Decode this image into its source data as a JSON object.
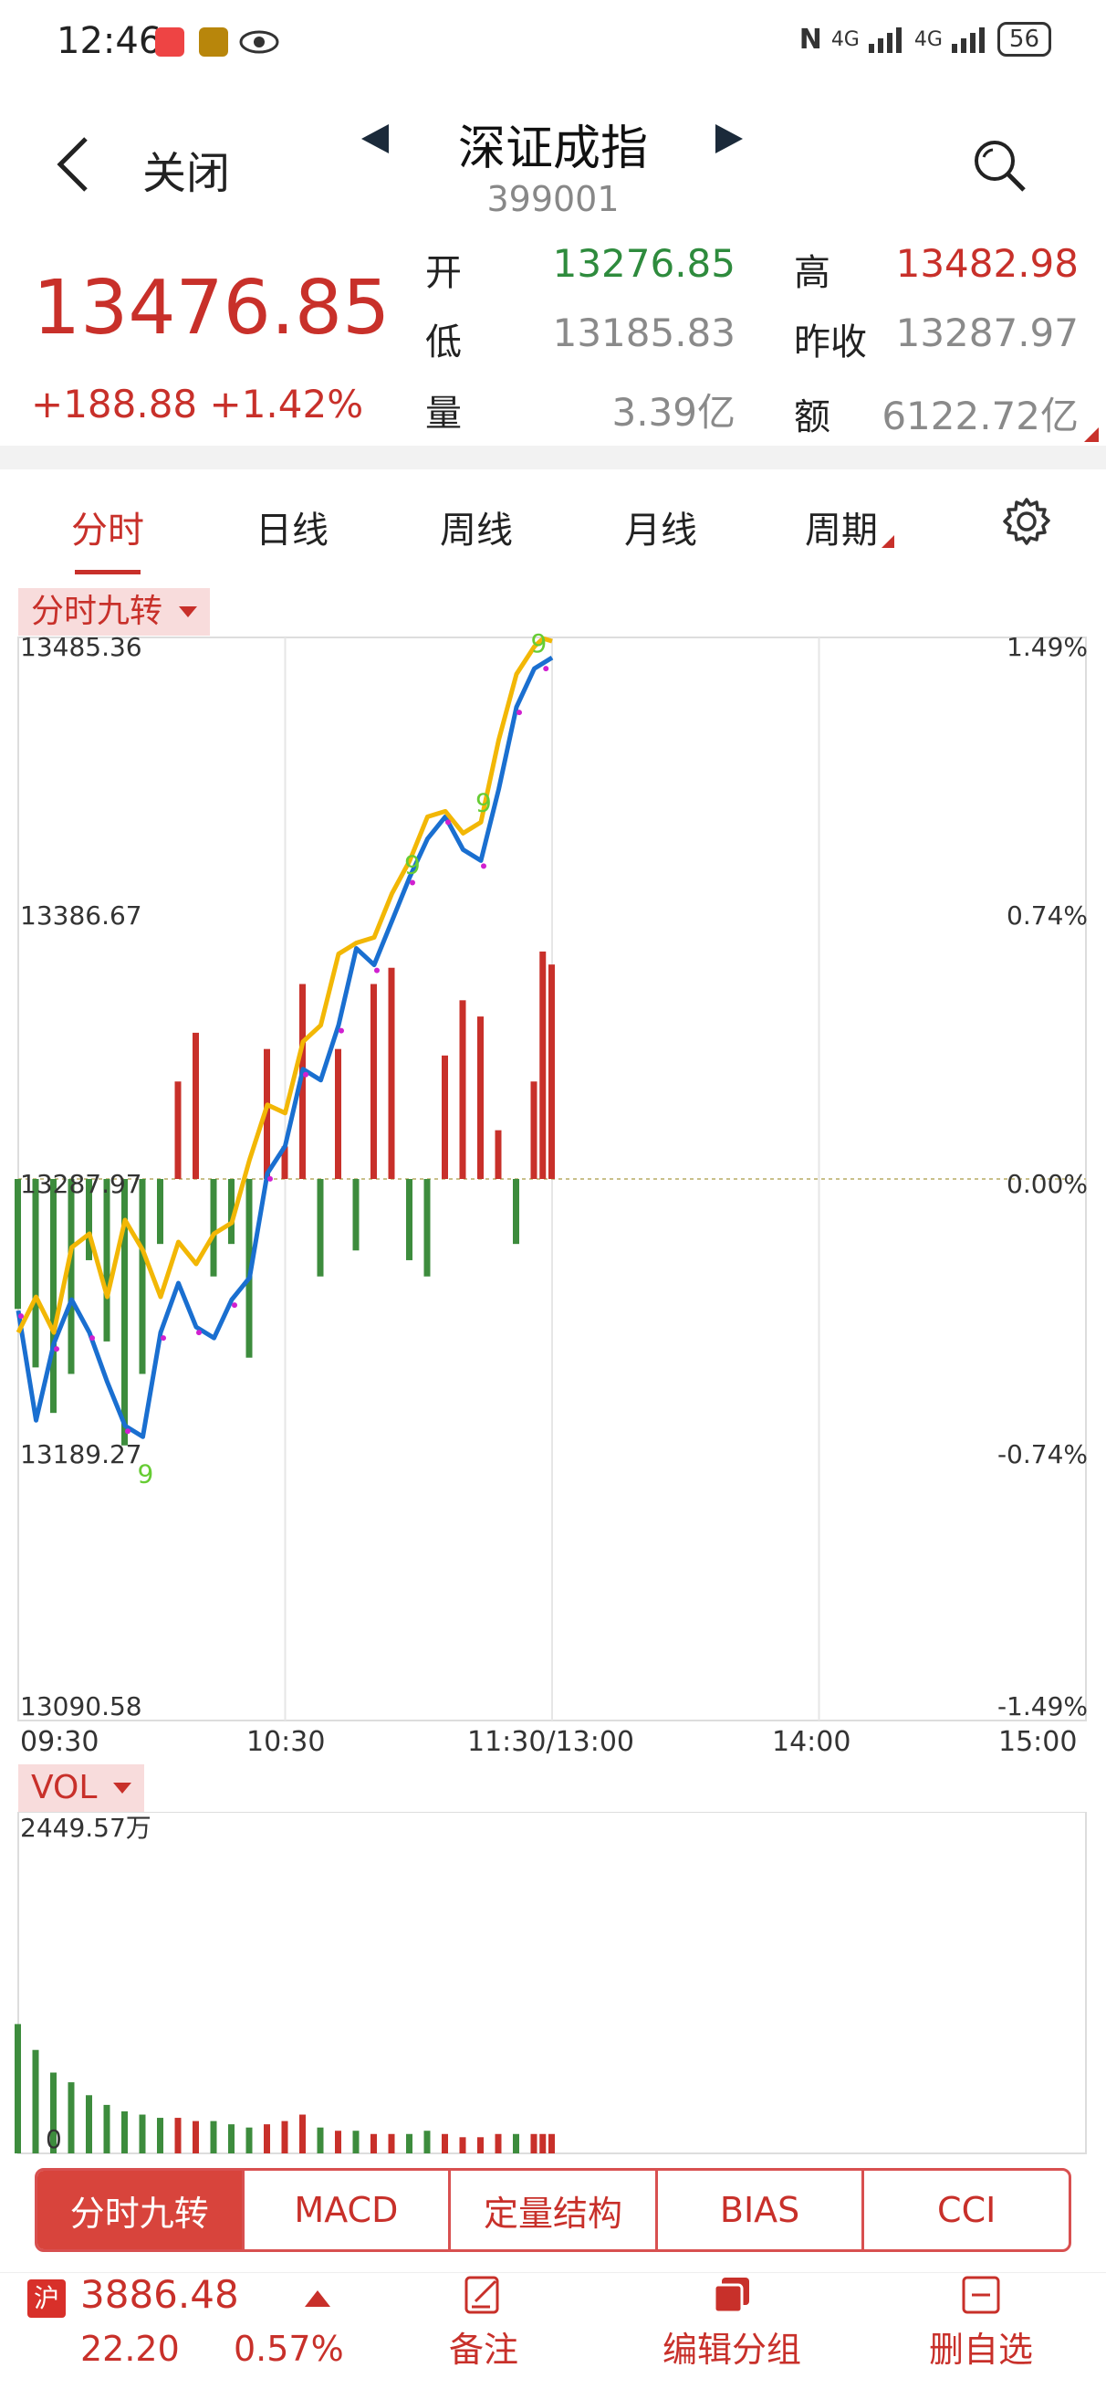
{
  "status": {
    "time": "12:46",
    "battery": "56",
    "net1": "4G",
    "net2": "4G"
  },
  "header": {
    "back_label": "关闭",
    "title": "深证成指",
    "code": "399001"
  },
  "quote": {
    "price": "13476.85",
    "change": "+188.88 +1.42%",
    "labels": {
      "open": "开",
      "high": "高",
      "low": "低",
      "prev_close": "昨收",
      "volume": "量",
      "amount": "额"
    },
    "open": "13276.85",
    "high": "13482.98",
    "low": "13185.83",
    "prev_close": "13287.97",
    "volume": "3.39亿",
    "amount": "6122.72亿"
  },
  "tabs": [
    "分时",
    "日线",
    "周线",
    "月线",
    "周期"
  ],
  "chip_main": "分时九转",
  "chip_vol": "VOL",
  "colors": {
    "red": "#c8302a",
    "green": "#2e8b3d",
    "blue": "#1a6fd0",
    "yellow": "#f2b705",
    "magenta": "#d020d0",
    "signal": "#66cc33"
  },
  "chart_data": {
    "type": "line",
    "title": "",
    "x_ticks": [
      "09:30",
      "10:30",
      "11:30/13:00",
      "14:00",
      "15:00"
    ],
    "y_ticks_left": [
      "13485.36",
      "13386.67",
      "13287.97",
      "13189.27",
      "13090.58"
    ],
    "y_ticks_right": [
      "1.49%",
      "0.74%",
      "0.00%",
      "-0.74%",
      "-1.49%"
    ],
    "ylim": [
      13090.58,
      13485.36
    ],
    "prev_close": 13287.97,
    "x_minutes": [
      0,
      4,
      8,
      12,
      16,
      20,
      24,
      28,
      32,
      36,
      40,
      44,
      48,
      52,
      56,
      60,
      64,
      68,
      72,
      76,
      80,
      84,
      88,
      92,
      96,
      100,
      104,
      108,
      112,
      116,
      118,
      120
    ],
    "series": [
      {
        "values": [
          13240,
          13200,
          13228,
          13244,
          13232,
          13214,
          13198,
          13194,
          13232,
          13250,
          13234,
          13230,
          13244,
          13252,
          13290,
          13300,
          13328,
          13324,
          13344,
          13372,
          13366,
          13382,
          13398,
          13412,
          13420,
          13408,
          13404,
          13430,
          13460,
          13474,
          13476,
          13478
        ]
      },
      {
        "values": [
          13232,
          13245,
          13232,
          13263,
          13268,
          13245,
          13273,
          13262,
          13245,
          13265,
          13257,
          13268,
          13272,
          13295,
          13315,
          13312,
          13338,
          13344,
          13370,
          13374,
          13376,
          13392,
          13404,
          13420,
          13422,
          13414,
          13418,
          13448,
          13472,
          13482,
          13485,
          13484
        ]
      }
    ],
    "bars_pct": [
      -40,
      -58,
      -72,
      -60,
      -25,
      -50,
      -82,
      -60,
      -20,
      30,
      45,
      -30,
      -20,
      -55,
      40,
      10,
      60,
      -30,
      40,
      -22,
      60,
      65,
      -25,
      -30,
      38,
      55,
      50,
      15,
      -20,
      30,
      70,
      66
    ],
    "vol_label": "2449.57万",
    "vol_ticks": [
      "0"
    ],
    "vol_values": [
      40,
      32,
      25,
      22,
      18,
      15,
      13,
      12,
      11,
      11,
      10,
      10,
      9,
      8,
      9,
      10,
      12,
      8,
      7,
      7,
      6,
      6,
      6,
      7,
      6,
      5,
      5,
      6,
      6,
      6,
      6,
      6
    ]
  },
  "indicators": [
    "分时九转",
    "MACD",
    "定量结构",
    "BIAS",
    "CCI"
  ],
  "bottom": {
    "market_badge": "沪",
    "sh_price": "3886.48",
    "sh_change": "22.20",
    "sh_pct": "0.57%",
    "note_label": "备注",
    "group_label": "编辑分组",
    "remove_label": "删自选"
  }
}
